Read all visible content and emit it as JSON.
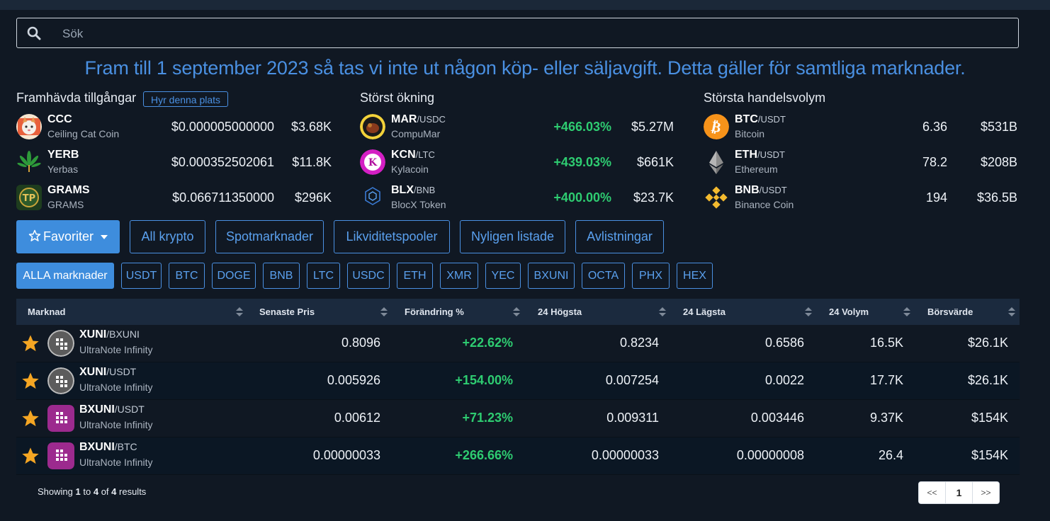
{
  "search": {
    "placeholder": "Sök"
  },
  "notice": "Fram till 1 september 2023 så tas vi inte ut någon köp- eller säljavgift. Detta gäller för samtliga marknader.",
  "featured": {
    "title": "Framhävda tillgångar",
    "rent_label": "Hyr denna plats",
    "items": [
      {
        "symbol": "CCC",
        "name": "Ceiling Cat Coin",
        "price": "$0.000005000000",
        "volume": "$3.68K",
        "icon": "cat-icon"
      },
      {
        "symbol": "YERB",
        "name": "Yerbas",
        "price": "$0.000352502061",
        "volume": "$11.8K",
        "icon": "leaf-icon"
      },
      {
        "symbol": "GRAMS",
        "name": "GRAMS",
        "price": "$0.066711350000",
        "volume": "$296K",
        "icon": "tp-badge-icon"
      }
    ]
  },
  "gainers": {
    "title": "Störst ökning",
    "items": [
      {
        "symbol": "MAR",
        "quote": "/USDC",
        "name": "CompuMar",
        "change": "+466.03%",
        "volume": "$5.27M",
        "icon": "mar-icon"
      },
      {
        "symbol": "KCN",
        "quote": "/LTC",
        "name": "Kylacoin",
        "change": "+439.03%",
        "volume": "$661K",
        "icon": "kcn-icon"
      },
      {
        "symbol": "BLX",
        "quote": "/BNB",
        "name": "BlocX Token",
        "change": "+400.00%",
        "volume": "$23.7K",
        "icon": "blocx-icon"
      }
    ]
  },
  "volume_leaders": {
    "title": "Största handelsvolym",
    "items": [
      {
        "symbol": "BTC",
        "quote": "/USDT",
        "name": "Bitcoin",
        "amount": "6.36",
        "volume": "$531B",
        "icon": "bitcoin-icon"
      },
      {
        "symbol": "ETH",
        "quote": "/USDT",
        "name": "Ethereum",
        "amount": "78.2",
        "volume": "$208B",
        "icon": "ethereum-icon"
      },
      {
        "symbol": "BNB",
        "quote": "/USDT",
        "name": "Binance Coin",
        "amount": "194",
        "volume": "$36.5B",
        "icon": "binance-icon"
      }
    ]
  },
  "tabs": [
    "Favoriter",
    "All krypto",
    "Spotmarknader",
    "Likviditetspooler",
    "Nyligen listade",
    "Avlistningar"
  ],
  "markets": [
    "ALLA marknader",
    "USDT",
    "BTC",
    "DOGE",
    "BNB",
    "LTC",
    "USDC",
    "ETH",
    "XMR",
    "YEC",
    "BXUNI",
    "OCTA",
    "PHX",
    "HEX"
  ],
  "table": {
    "headers": [
      "Marknad",
      "Senaste Pris",
      "Förändring %",
      "24 Högsta",
      "24 Lägsta",
      "24 Volym",
      "Börsvärde"
    ],
    "rows": [
      {
        "symbol": "XUNI",
        "quote": "/BXUNI",
        "name": "UltraNote Infinity",
        "price": "0.8096",
        "change": "+22.62%",
        "high": "0.8234",
        "low": "0.6586",
        "volume": "16.5K",
        "mcap": "$26.1K",
        "icon": "xuni-icon"
      },
      {
        "symbol": "XUNI",
        "quote": "/USDT",
        "name": "UltraNote Infinity",
        "price": "0.005926",
        "change": "+154.00%",
        "high": "0.007254",
        "low": "0.0022",
        "volume": "17.7K",
        "mcap": "$26.1K",
        "icon": "xuni-icon"
      },
      {
        "symbol": "BXUNI",
        "quote": "/USDT",
        "name": "UltraNote Infinity",
        "price": "0.00612",
        "change": "+71.23%",
        "high": "0.009311",
        "low": "0.003446",
        "volume": "9.37K",
        "mcap": "$154K",
        "icon": "bxuni-icon"
      },
      {
        "symbol": "BXUNI",
        "quote": "/BTC",
        "name": "UltraNote Infinity",
        "price": "0.00000033",
        "change": "+266.66%",
        "high": "0.00000033",
        "low": "0.00000008",
        "volume": "26.4",
        "mcap": "$154K",
        "icon": "bxuni-icon"
      }
    ]
  },
  "pagination": {
    "showing": "Showing",
    "from": "1",
    "to_word": "to",
    "to": "4",
    "of_word": "of",
    "total": "4",
    "results_word": "results",
    "prev": "<<",
    "current": "1",
    "next": ">>"
  },
  "colors": {
    "accent": "#4a90e2",
    "positive": "#2ecc71",
    "background": "#101823",
    "header": "#1b2a3e",
    "star": "#f5a623"
  }
}
